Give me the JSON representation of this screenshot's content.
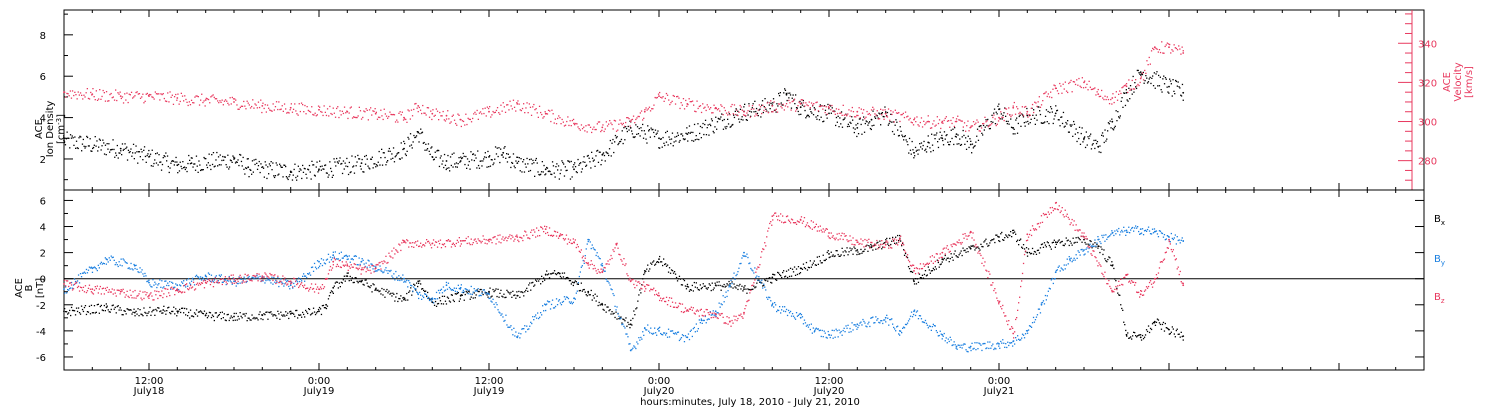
{
  "chart_data": [
    {
      "type": "scatter",
      "panel": "top",
      "ylabel_left": [
        "ACE",
        "Ion Density",
        "[cm",
        "-3",
        "]"
      ],
      "ylabel_right": [
        "ACE",
        "Velocity",
        "[km/s]"
      ],
      "ylim_left": [
        0.5,
        9.2
      ],
      "yticks_left": [
        "2",
        "4",
        "6",
        "8"
      ],
      "ylim_right": [
        265,
        357
      ],
      "yticks_right": [
        "280",
        "300",
        "320",
        "340"
      ],
      "grid": false,
      "colors": {
        "density": "#000000",
        "velocity": "#e8385e"
      },
      "series": [
        {
          "name": "Ion Density",
          "axis": "left",
          "x_hours": [
            0,
            4,
            6,
            8,
            9,
            12,
            13,
            16,
            18,
            21,
            24,
            25,
            26,
            27,
            28,
            30,
            31,
            32,
            34,
            36,
            38,
            40,
            42,
            44,
            48,
            50,
            51,
            52,
            54,
            56,
            57,
            58,
            60,
            61,
            62,
            63,
            64,
            66,
            67,
            68,
            70,
            72,
            73,
            74,
            75,
            76,
            78,
            79
          ],
          "values": [
            2.9,
            2.5,
            2.1,
            1.7,
            1.8,
            2.0,
            1.6,
            1.4,
            1.5,
            1.8,
            2.5,
            3.3,
            2.1,
            1.9,
            1.9,
            2.1,
            2.3,
            1.8,
            1.5,
            1.5,
            2.2,
            3.5,
            3.0,
            3.2,
            4.3,
            4.6,
            5.1,
            4.5,
            4.2,
            3.5,
            3.9,
            4.2,
            2.3,
            2.8,
            3.0,
            3.2,
            2.7,
            4.4,
            3.5,
            4.1,
            4.2,
            3.0,
            2.6,
            3.8,
            5.2,
            6.2,
            5.5,
            5.2
          ]
        },
        {
          "name": "Velocity",
          "axis": "right",
          "x_hours": [
            0,
            2,
            4,
            6,
            8,
            10,
            12,
            14,
            16,
            18,
            20,
            22,
            24,
            25,
            26,
            27,
            28,
            30,
            32,
            34,
            36,
            38,
            40,
            41,
            42,
            44,
            46,
            48,
            50,
            52,
            54,
            56,
            58,
            60,
            61,
            62,
            63,
            64,
            66,
            67,
            68,
            70,
            72,
            73,
            74,
            75,
            76,
            77,
            78,
            79
          ],
          "values": [
            315,
            314,
            313,
            313,
            312,
            311,
            310,
            308,
            307,
            306,
            305,
            304,
            302,
            308,
            304,
            303,
            301,
            305,
            309,
            304,
            299,
            297,
            300,
            305,
            313,
            309,
            307,
            305,
            308,
            309,
            307,
            305,
            304,
            301,
            300,
            300,
            300,
            297,
            302,
            307,
            305,
            317,
            320,
            314,
            312,
            318,
            322,
            338,
            338,
            335
          ]
        }
      ]
    },
    {
      "type": "scatter",
      "panel": "bottom",
      "ylabel": [
        "ACE",
        "B",
        "[nT]"
      ],
      "ylim": [
        -7,
        6.8
      ],
      "yticks": [
        "-6",
        "-4",
        "-2",
        "0",
        "2",
        "4",
        "6"
      ],
      "zero_line": true,
      "grid": false,
      "legend_placement": "right",
      "series": [
        {
          "name": "B",
          "sub": "x",
          "color": "#000000",
          "x_hours": [
            0,
            3,
            5,
            7,
            8,
            10,
            12,
            14,
            16,
            18,
            18.5,
            19,
            20,
            21,
            22,
            24,
            25,
            26,
            28,
            30,
            32,
            34,
            35,
            36,
            37,
            38,
            40,
            41,
            42,
            44,
            46,
            47,
            48,
            50,
            52,
            54,
            56,
            57,
            58,
            59,
            60,
            62,
            64,
            66,
            67,
            68,
            70,
            72,
            73,
            74,
            75,
            76,
            77,
            78,
            79
          ],
          "values": [
            -2.5,
            -2.2,
            -2.6,
            -2.4,
            -2.5,
            -2.8,
            -2.9,
            -2.8,
            -2.7,
            -2.5,
            -2.0,
            -0.7,
            0.2,
            -0.2,
            -0.8,
            -1.6,
            -0.2,
            -1.8,
            -1.3,
            -1.0,
            -1.3,
            0.3,
            0.4,
            -0.3,
            -1.0,
            -2.0,
            -3.5,
            0.6,
            1.5,
            -0.6,
            -0.5,
            -0.5,
            -0.8,
            0.1,
            0.8,
            1.9,
            2.2,
            2.4,
            2.8,
            3.1,
            -0.2,
            1.5,
            2.3,
            3.2,
            3.5,
            2.0,
            2.8,
            3.0,
            2.5,
            1.0,
            -4.3,
            -4.5,
            -3.3,
            -3.9,
            -4.4
          ]
        },
        {
          "name": "B",
          "sub": "y",
          "color": "#1a7fe0",
          "x_hours": [
            0,
            2,
            3,
            5,
            6,
            8,
            10,
            12,
            14,
            16,
            17,
            18,
            19,
            20,
            21,
            22,
            24,
            25,
            26,
            27,
            28,
            30,
            32,
            34,
            36,
            37,
            38,
            40,
            41,
            42,
            44,
            45,
            46,
            47,
            48,
            50,
            52,
            53,
            54,
            56,
            58,
            59,
            60,
            62,
            63,
            64,
            66,
            67,
            68,
            69,
            70,
            71,
            72,
            73,
            74,
            75,
            76,
            77,
            78,
            79
          ],
          "values": [
            -0.8,
            0.8,
            1.5,
            1.0,
            -0.3,
            -0.5,
            0.2,
            -0.2,
            0.1,
            -0.5,
            0.2,
            1.3,
            1.8,
            1.7,
            1.3,
            0.9,
            0.0,
            -1.2,
            -1.5,
            -0.5,
            -0.7,
            -1.2,
            -4.5,
            -2.0,
            -1.5,
            3.0,
            1.0,
            -5.5,
            -3.8,
            -4.0,
            -4.5,
            -3.2,
            -2.5,
            -0.5,
            2.0,
            -2.0,
            -3.0,
            -4.0,
            -4.3,
            -3.5,
            -3.0,
            -4.0,
            -2.5,
            -4.3,
            -5.2,
            -5.2,
            -5.0,
            -4.8,
            -4.0,
            -2.0,
            0.5,
            1.5,
            2.2,
            3.0,
            3.5,
            3.7,
            3.8,
            3.6,
            3.2,
            2.9
          ]
        },
        {
          "name": "B",
          "sub": "z",
          "color": "#e8385e",
          "x_hours": [
            0,
            2,
            4,
            6,
            8,
            10,
            12,
            14,
            16,
            18,
            18.5,
            19,
            20,
            21,
            22,
            24,
            26,
            28,
            30,
            32,
            34,
            35,
            36,
            37,
            38,
            39,
            40,
            41,
            42,
            44,
            46,
            47,
            48,
            50,
            52,
            54,
            56,
            58,
            59,
            60,
            62,
            64,
            66,
            67,
            68,
            70,
            72,
            74,
            75,
            76,
            77,
            78,
            79
          ],
          "values": [
            -0.4,
            -0.8,
            -1.0,
            -1.3,
            -0.8,
            -0.3,
            0.0,
            0.2,
            -0.2,
            -0.8,
            0.0,
            1.3,
            1.0,
            0.7,
            0.8,
            2.8,
            2.7,
            2.9,
            3.0,
            3.2,
            3.8,
            3.3,
            2.8,
            1.2,
            0.5,
            2.6,
            -0.2,
            -0.6,
            -1.3,
            -2.4,
            -2.7,
            -3.3,
            -2.6,
            4.8,
            4.5,
            3.5,
            2.8,
            2.6,
            3.0,
            0.6,
            2.0,
            3.6,
            -1.8,
            -4.2,
            3.4,
            5.8,
            3.2,
            -1.0,
            0.3,
            -1.2,
            0.0,
            3.0,
            -0.5
          ]
        }
      ]
    }
  ],
  "x_axis": {
    "start_hour": 6,
    "end_hour": 102,
    "ticks": [
      {
        "time": "12:00",
        "date": "July18"
      },
      {
        "time": "0:00",
        "date": "July19"
      },
      {
        "time": "12:00",
        "date": "July19"
      },
      {
        "time": "0:00",
        "date": "July20"
      },
      {
        "time": "12:00",
        "date": "July20"
      },
      {
        "time": "0:00",
        "date": "July21"
      }
    ],
    "xlabel": "hours:minutes, July 18, 2010 - July 21, 2010"
  }
}
